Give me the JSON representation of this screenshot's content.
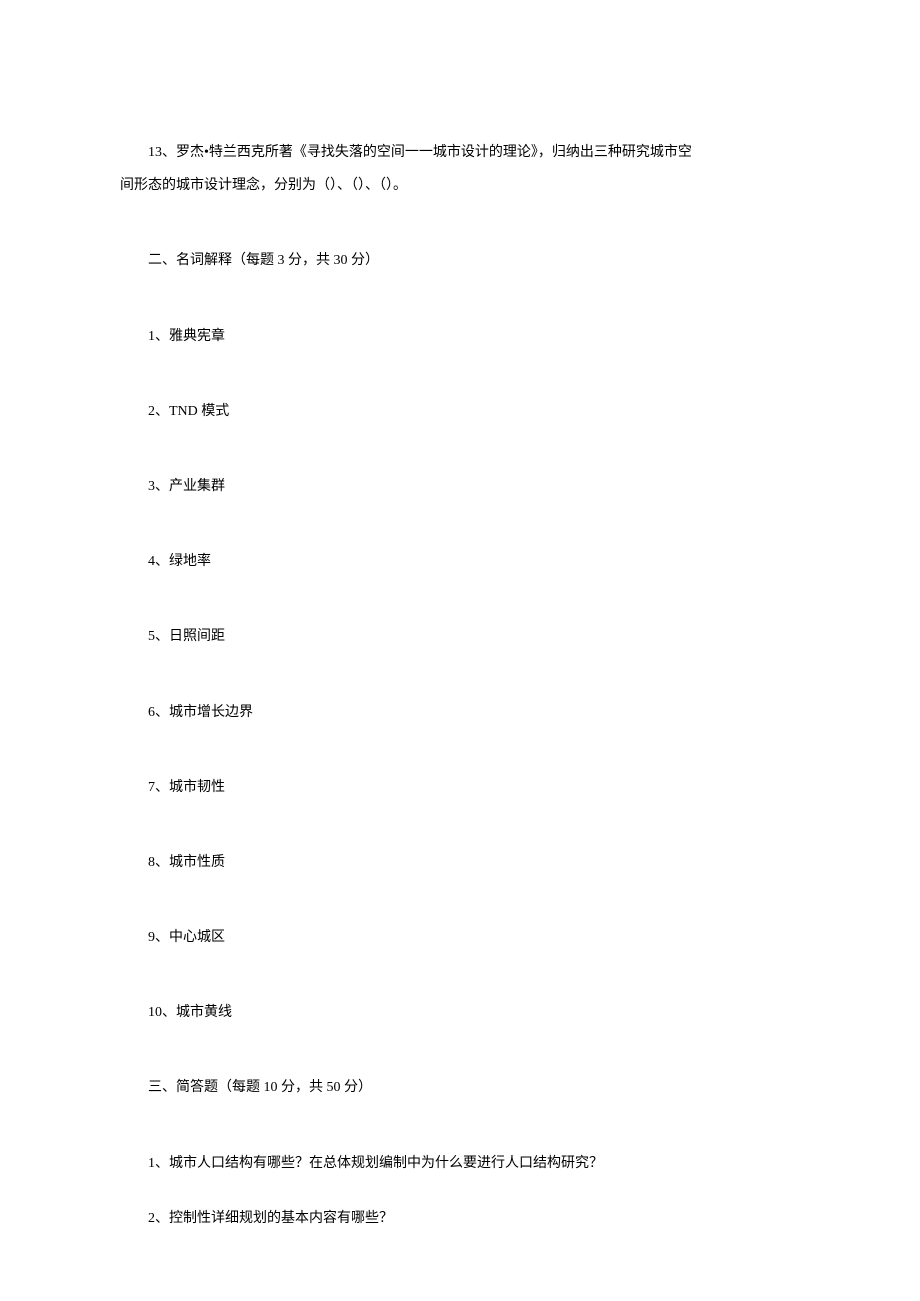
{
  "intro": {
    "line1": "13、罗杰•特兰西克所著《寻找失落的空间一一城市设计的理论》，归纳出三种研究城市空",
    "line2": "间形态的城市设计理念，分别为（）、（）、（）。"
  },
  "section2": {
    "header": "二、名词解释（每题 3 分，共 30 分）",
    "items": [
      "1、雅典宪章",
      "2、TND 模式",
      "3、产业集群",
      "4、绿地率",
      "5、日照间距",
      "6、城市增长边界",
      "7、城市韧性",
      "8、城市性质",
      "9、中心城区",
      "10、城市黄线"
    ]
  },
  "section3": {
    "header": "三、简答题（每题 10 分，共 50 分）",
    "items": [
      "1、城市人口结构有哪些？在总体规划编制中为什么要进行人口结构研究？",
      "2、控制性详细规划的基本内容有哪些？"
    ]
  }
}
